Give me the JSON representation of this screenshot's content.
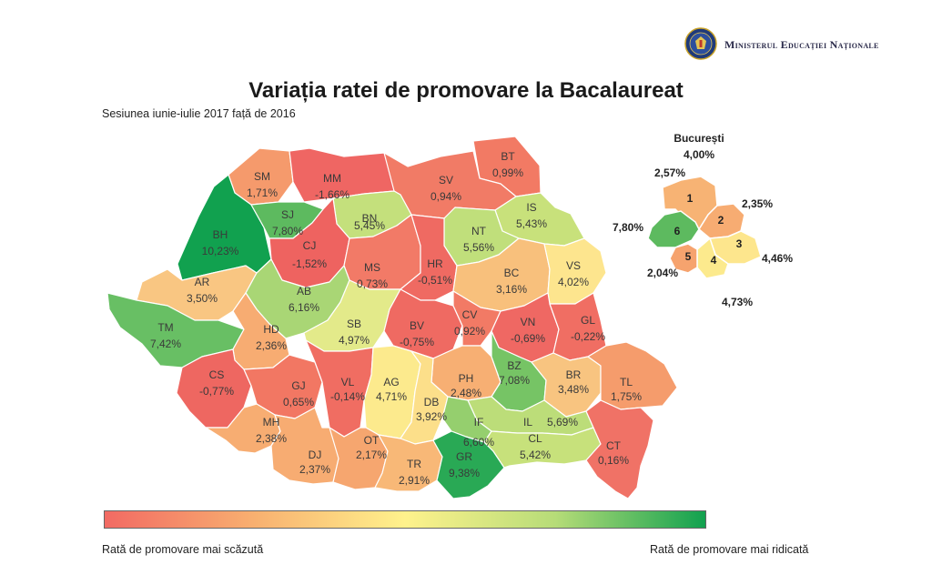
{
  "header": {
    "ministry": "Ministerul Educației Naționale",
    "title": "Variația ratei de promovare la Bacalaureat",
    "subtitle": "Sesiunea iunie-iulie 2017 față de 2016"
  },
  "counties": [
    {
      "code": "SM",
      "value": "1,71%",
      "color": "#f59a6c"
    },
    {
      "code": "MM",
      "value": "-1,66%",
      "color": "#ef6663"
    },
    {
      "code": "BT",
      "value": "0,99%",
      "color": "#f27a64"
    },
    {
      "code": "SV",
      "value": "0,94%",
      "color": "#f17b66"
    },
    {
      "code": "BH",
      "value": "10,23%",
      "color": "#11a14f"
    },
    {
      "code": "SJ",
      "value": "7,80%",
      "color": "#5dba5f"
    },
    {
      "code": "BN",
      "value": "5,45%",
      "color": "#c4e07c"
    },
    {
      "code": "IS",
      "value": "5,43%",
      "color": "#c8e17b"
    },
    {
      "code": "NT",
      "value": "5,56%",
      "color": "#c0df7b"
    },
    {
      "code": "CJ",
      "value": "-1,52%",
      "color": "#ee6360"
    },
    {
      "code": "MS",
      "value": "0,73%",
      "color": "#f27a67"
    },
    {
      "code": "HR",
      "value": "-0,51%",
      "color": "#ef6a62"
    },
    {
      "code": "BC",
      "value": "3,16%",
      "color": "#f8c07c"
    },
    {
      "code": "VS",
      "value": "4,02%",
      "color": "#fde58e"
    },
    {
      "code": "AR",
      "value": "3,50%",
      "color": "#f9c682"
    },
    {
      "code": "AB",
      "value": "6,16%",
      "color": "#a9d675"
    },
    {
      "code": "TM",
      "value": "7,42%",
      "color": "#68bf64"
    },
    {
      "code": "HD",
      "value": "2,36%",
      "color": "#f7ac72"
    },
    {
      "code": "SB",
      "value": "4,97%",
      "color": "#e3ea8a"
    },
    {
      "code": "BV",
      "value": "-0,75%",
      "color": "#ef6a62"
    },
    {
      "code": "CV",
      "value": "0,92%",
      "color": "#f27a65"
    },
    {
      "code": "VN",
      "value": "-0,69%",
      "color": "#ef6863"
    },
    {
      "code": "GL",
      "value": "-0,22%",
      "color": "#f06e63"
    },
    {
      "code": "CS",
      "value": "-0,77%",
      "color": "#ee6761"
    },
    {
      "code": "GJ",
      "value": "0,65%",
      "color": "#f27763"
    },
    {
      "code": "VL",
      "value": "-0,14%",
      "color": "#f06d62"
    },
    {
      "code": "AG",
      "value": "4,71%",
      "color": "#fcea8d"
    },
    {
      "code": "PH",
      "value": "2,48%",
      "color": "#f7af73"
    },
    {
      "code": "BZ",
      "value": "7,08%",
      "color": "#76c465"
    },
    {
      "code": "BR",
      "value": "3,48%",
      "color": "#f8c480"
    },
    {
      "code": "TL",
      "value": "1,75%",
      "color": "#f59c6c"
    },
    {
      "code": "DB",
      "value": "3,92%",
      "color": "#fcdf8a"
    },
    {
      "code": "IL",
      "value": "5,69%",
      "color": "#bcdd79"
    },
    {
      "code": "IF",
      "value": "6,60%",
      "color": "#95cf6e"
    },
    {
      "code": "MH",
      "value": "2,38%",
      "color": "#f7ad72"
    },
    {
      "code": "DJ",
      "value": "2,37%",
      "color": "#f7ac72"
    },
    {
      "code": "OT",
      "value": "2,17%",
      "color": "#f6a66f"
    },
    {
      "code": "TR",
      "value": "2,91%",
      "color": "#f8b877"
    },
    {
      "code": "GR",
      "value": "9,38%",
      "color": "#29a955"
    },
    {
      "code": "CL",
      "value": "5,42%",
      "color": "#c7e17b"
    },
    {
      "code": "CT",
      "value": "0,16%",
      "color": "#f07266"
    }
  ],
  "bucuresti": {
    "title": "București",
    "total": "4,00%",
    "sectors": [
      {
        "num": "1",
        "value": "2,57%",
        "color": "#f7b374"
      },
      {
        "num": "2",
        "value": "2,35%",
        "color": "#f7ac72"
      },
      {
        "num": "3",
        "value": "4,46%",
        "color": "#fde68d"
      },
      {
        "num": "4",
        "value": "4,73%",
        "color": "#fcea8d"
      },
      {
        "num": "5",
        "value": "2,04%",
        "color": "#f6a36e"
      },
      {
        "num": "6",
        "value": "7,80%",
        "color": "#5dba5f"
      }
    ]
  },
  "legend": {
    "low": "Rată de promovare mai scăzută",
    "high": "Rată de promovare mai ridicată"
  }
}
